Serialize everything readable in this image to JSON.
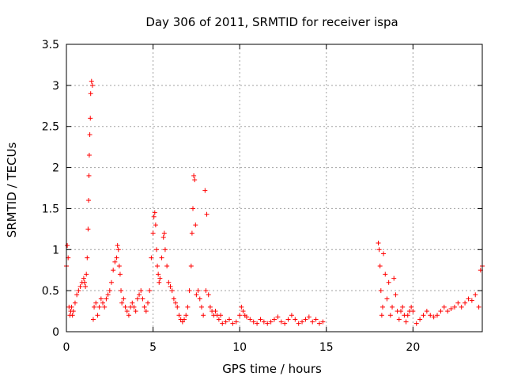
{
  "chart_data": {
    "type": "scatter",
    "title": "Day 306 of 2011, SRMTID for receiver ispa",
    "xlabel": "GPS time / hours",
    "ylabel": "SRMTID / TECUs",
    "xlim": [
      0,
      24
    ],
    "ylim": [
      0,
      3.5
    ],
    "xticks": [
      0,
      5,
      10,
      15,
      20
    ],
    "yticks": [
      0,
      0.5,
      1,
      1.5,
      2,
      2.5,
      3,
      3.5
    ],
    "xtick_labels": [
      "0",
      "5",
      "10",
      "15",
      "20"
    ],
    "ytick_labels": [
      "0",
      "0.5",
      "1",
      "1.5",
      "2",
      "2.5",
      "3",
      "3.5"
    ],
    "grid": true,
    "marker": "+",
    "color": "#ff0000",
    "series": [
      {
        "name": "ispa",
        "x": [
          0.0,
          0.05,
          0.1,
          0.15,
          0.2,
          0.25,
          0.3,
          0.35,
          0.4,
          0.5,
          0.6,
          0.7,
          0.8,
          0.9,
          1.0,
          1.05,
          1.1,
          1.15,
          1.2,
          1.25,
          1.28,
          1.3,
          1.32,
          1.35,
          1.38,
          1.4,
          1.45,
          1.5,
          1.55,
          1.6,
          1.7,
          1.8,
          1.9,
          2.0,
          2.1,
          2.2,
          2.3,
          2.4,
          2.5,
          2.6,
          2.7,
          2.8,
          2.9,
          2.95,
          3.0,
          3.05,
          3.1,
          3.15,
          3.2,
          3.3,
          3.4,
          3.5,
          3.6,
          3.7,
          3.8,
          3.9,
          4.0,
          4.1,
          4.2,
          4.3,
          4.4,
          4.5,
          4.6,
          4.7,
          4.8,
          4.9,
          5.0,
          5.05,
          5.1,
          5.15,
          5.2,
          5.25,
          5.3,
          5.35,
          5.4,
          5.5,
          5.6,
          5.65,
          5.7,
          5.8,
          5.9,
          6.0,
          6.1,
          6.2,
          6.3,
          6.4,
          6.5,
          6.6,
          6.7,
          6.8,
          6.9,
          7.0,
          7.1,
          7.2,
          7.25,
          7.3,
          7.35,
          7.4,
          7.45,
          7.5,
          7.6,
          7.7,
          7.8,
          7.9,
          8.0,
          8.05,
          8.1,
          8.2,
          8.3,
          8.4,
          8.5,
          8.6,
          8.7,
          8.8,
          8.9,
          9.0,
          9.2,
          9.4,
          9.6,
          9.8,
          10.0,
          10.1,
          10.2,
          10.3,
          10.4,
          10.6,
          10.8,
          11.0,
          11.2,
          11.4,
          11.6,
          11.8,
          12.0,
          12.2,
          12.4,
          12.6,
          12.8,
          13.0,
          13.2,
          13.4,
          13.6,
          13.8,
          14.0,
          14.2,
          14.4,
          14.6,
          14.8,
          18.0,
          18.05,
          18.1,
          18.15,
          18.2,
          18.25,
          18.3,
          18.4,
          18.5,
          18.6,
          18.7,
          18.8,
          18.9,
          19.0,
          19.1,
          19.2,
          19.3,
          19.4,
          19.5,
          19.6,
          19.7,
          19.8,
          19.9,
          20.0,
          20.2,
          20.4,
          20.6,
          20.8,
          21.0,
          21.2,
          21.4,
          21.6,
          21.8,
          22.0,
          22.2,
          22.4,
          22.6,
          22.8,
          23.0,
          23.2,
          23.4,
          23.6,
          23.8,
          23.9,
          24.0
        ],
        "y": [
          0.8,
          1.05,
          0.9,
          0.3,
          0.2,
          0.25,
          0.3,
          0.2,
          0.25,
          0.35,
          0.45,
          0.5,
          0.55,
          0.6,
          0.65,
          0.6,
          0.55,
          0.7,
          0.9,
          1.25,
          1.6,
          1.9,
          2.15,
          2.4,
          2.6,
          2.9,
          3.05,
          3.0,
          0.15,
          0.3,
          0.35,
          0.2,
          0.3,
          0.4,
          0.35,
          0.3,
          0.4,
          0.45,
          0.5,
          0.6,
          0.75,
          0.85,
          0.9,
          1.05,
          1.0,
          0.8,
          0.7,
          0.5,
          0.35,
          0.4,
          0.3,
          0.25,
          0.2,
          0.3,
          0.35,
          0.3,
          0.25,
          0.4,
          0.45,
          0.5,
          0.4,
          0.3,
          0.25,
          0.35,
          0.5,
          0.9,
          1.2,
          1.4,
          1.45,
          1.3,
          1.0,
          0.8,
          0.7,
          0.6,
          0.65,
          0.9,
          1.15,
          1.2,
          1.0,
          0.8,
          0.6,
          0.55,
          0.5,
          0.4,
          0.35,
          0.3,
          0.2,
          0.15,
          0.12,
          0.15,
          0.2,
          0.3,
          0.5,
          0.8,
          1.2,
          1.5,
          1.9,
          1.85,
          1.3,
          0.45,
          0.5,
          0.4,
          0.3,
          0.2,
          1.72,
          0.5,
          1.43,
          0.45,
          0.3,
          0.25,
          0.2,
          0.25,
          0.2,
          0.15,
          0.2,
          0.1,
          0.12,
          0.15,
          0.1,
          0.12,
          0.2,
          0.3,
          0.25,
          0.2,
          0.18,
          0.15,
          0.12,
          0.1,
          0.15,
          0.12,
          0.1,
          0.12,
          0.15,
          0.18,
          0.12,
          0.1,
          0.15,
          0.2,
          0.15,
          0.1,
          0.12,
          0.15,
          0.18,
          0.12,
          0.15,
          0.1,
          0.12,
          1.08,
          1.0,
          0.8,
          0.5,
          0.2,
          0.3,
          0.95,
          0.7,
          0.4,
          0.6,
          0.2,
          0.3,
          0.65,
          0.45,
          0.25,
          0.15,
          0.25,
          0.3,
          0.2,
          0.12,
          0.2,
          0.25,
          0.3,
          0.25,
          0.1,
          0.15,
          0.2,
          0.25,
          0.2,
          0.18,
          0.2,
          0.25,
          0.3,
          0.25,
          0.28,
          0.3,
          0.35,
          0.3,
          0.35,
          0.4,
          0.38,
          0.45,
          0.3,
          0.75,
          0.8
        ]
      }
    ]
  }
}
